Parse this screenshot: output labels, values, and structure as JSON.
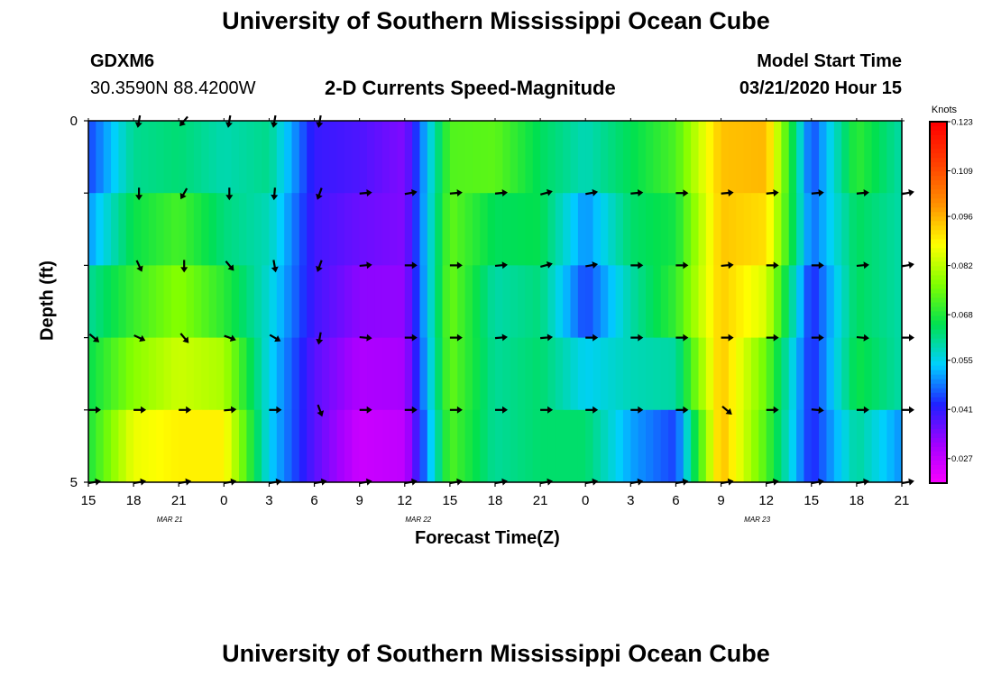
{
  "header": {
    "title_top": "University of Southern Mississippi Ocean Cube",
    "title_bottom": "University of Southern Mississippi Ocean Cube",
    "station_id": "GDXM6",
    "station_coords": "30.3590N 88.4200W",
    "model_start_label": "Model Start Time",
    "model_start_value": "03/21/2020 Hour 15"
  },
  "colors": {
    "palette": [
      "#ff00ff",
      "#a400ff",
      "#2020ff",
      "#00d0ff",
      "#00e050",
      "#80ff00",
      "#ffff00",
      "#ff9000",
      "#ff4000",
      "#ff0000"
    ]
  },
  "chart_data": {
    "type": "heatmap",
    "title": "2-D Currents Speed-Magnitude",
    "xlabel": "Forecast Time(Z)",
    "ylabel": "Depth (ft)",
    "x_tick_labels": [
      "15",
      "18",
      "21",
      "0",
      "3",
      "6",
      "9",
      "12",
      "15",
      "18",
      "21",
      "0",
      "3",
      "6",
      "9",
      "12",
      "15",
      "18",
      "21"
    ],
    "date_labels": [
      {
        "tick_index": 1.5,
        "text": "MAR 21"
      },
      {
        "tick_index": 7,
        "text": "MAR 22"
      },
      {
        "tick_index": 14.5,
        "text": "MAR 23"
      }
    ],
    "y_tick_labels": [
      "0",
      "5"
    ],
    "ylim": [
      0,
      5
    ],
    "hours_span": 54,
    "units": "Knots",
    "colorbar_labels": [
      "0.123",
      "0.109",
      "0.096",
      "0.082",
      "0.068",
      "0.055",
      "0.041",
      "0.027"
    ],
    "colorbar_min": 0.02,
    "colorbar_max": 0.123,
    "depth_bands": 5,
    "series": [
      {
        "depth_band": 0,
        "anchors_hour": [
          0,
          3,
          6,
          9,
          12,
          15,
          18,
          21,
          24,
          27,
          30,
          33,
          36,
          39,
          42,
          45,
          48,
          51,
          54
        ],
        "values": [
          0.045,
          0.06,
          0.061,
          0.058,
          0.064,
          0.042,
          0.04,
          0.034,
          0.072,
          0.078,
          0.062,
          0.058,
          0.063,
          0.075,
          0.095,
          0.098,
          0.04,
          0.07,
          0.06
        ],
        "dir_deg": [
          null,
          190,
          220,
          190,
          190,
          190,
          null,
          null,
          null,
          null,
          null,
          null,
          null,
          null,
          null,
          null,
          null,
          null,
          null
        ]
      },
      {
        "depth_band": 1,
        "anchors_hour": [
          0,
          3,
          6,
          9,
          12,
          15,
          18,
          21,
          24,
          27,
          30,
          33,
          36,
          39,
          42,
          45,
          48,
          51,
          54
        ],
        "values": [
          0.045,
          0.063,
          0.066,
          0.061,
          0.06,
          0.04,
          0.038,
          0.035,
          0.074,
          0.07,
          0.068,
          0.06,
          0.068,
          0.07,
          0.095,
          0.094,
          0.05,
          0.07,
          0.06
        ],
        "dir_deg": [
          null,
          180,
          210,
          180,
          185,
          200,
          85,
          80,
          85,
          85,
          75,
          80,
          85,
          90,
          85,
          85,
          85,
          85,
          80
        ]
      },
      {
        "depth_band": 2,
        "anchors_hour": [
          0,
          3,
          6,
          9,
          12,
          15,
          18,
          21,
          24,
          27,
          30,
          33,
          36,
          39,
          42,
          45,
          48,
          51,
          54
        ],
        "values": [
          0.056,
          0.07,
          0.078,
          0.065,
          0.058,
          0.04,
          0.035,
          0.034,
          0.075,
          0.06,
          0.064,
          0.04,
          0.06,
          0.065,
          0.094,
          0.09,
          0.045,
          0.06,
          0.06
        ],
        "dir_deg": [
          null,
          155,
          180,
          140,
          170,
          200,
          85,
          90,
          90,
          85,
          75,
          80,
          90,
          90,
          85,
          90,
          90,
          85,
          80
        ]
      },
      {
        "depth_band": 3,
        "anchors_hour": [
          0,
          3,
          6,
          9,
          12,
          15,
          18,
          21,
          24,
          27,
          30,
          33,
          36,
          39,
          42,
          45,
          48,
          51,
          54
        ],
        "values": [
          0.066,
          0.072,
          0.078,
          0.074,
          0.056,
          0.04,
          0.032,
          0.032,
          0.076,
          0.06,
          0.062,
          0.05,
          0.06,
          0.076,
          0.094,
          0.08,
          0.04,
          0.07,
          0.06
        ],
        "dir_deg": [
          130,
          115,
          140,
          110,
          120,
          190,
          95,
          90,
          90,
          85,
          85,
          90,
          90,
          90,
          90,
          90,
          90,
          95,
          90
        ]
      },
      {
        "depth_band": 4,
        "anchors_hour": [
          0,
          3,
          6,
          9,
          12,
          15,
          18,
          21,
          24,
          27,
          30,
          33,
          36,
          39,
          42,
          45,
          48,
          51,
          54
        ],
        "values": [
          0.066,
          0.084,
          0.09,
          0.088,
          0.055,
          0.036,
          0.028,
          0.03,
          0.074,
          0.062,
          0.066,
          0.06,
          0.058,
          0.045,
          0.096,
          0.07,
          0.045,
          0.064,
          0.06
        ],
        "dir_deg": [
          90,
          90,
          90,
          85,
          90,
          160,
          90,
          90,
          90,
          90,
          90,
          90,
          90,
          90,
          130,
          90,
          95,
          90,
          90
        ]
      },
      {
        "depth_band": 5,
        "anchors_hour": [
          0,
          3,
          6,
          9,
          12,
          15,
          18,
          21,
          24,
          27,
          30,
          33,
          36,
          39,
          42,
          45,
          48,
          51,
          54
        ],
        "values": [
          0.07,
          0.09,
          0.09,
          0.092,
          0.055,
          0.04,
          0.025,
          0.026,
          0.072,
          0.06,
          0.062,
          0.068,
          0.045,
          0.045,
          0.096,
          0.075,
          0.04,
          0.058,
          0.04
        ],
        "dir_deg": [
          80,
          80,
          80,
          80,
          80,
          80,
          80,
          80,
          80,
          80,
          80,
          80,
          80,
          80,
          80,
          80,
          80,
          80,
          80
        ]
      }
    ]
  }
}
